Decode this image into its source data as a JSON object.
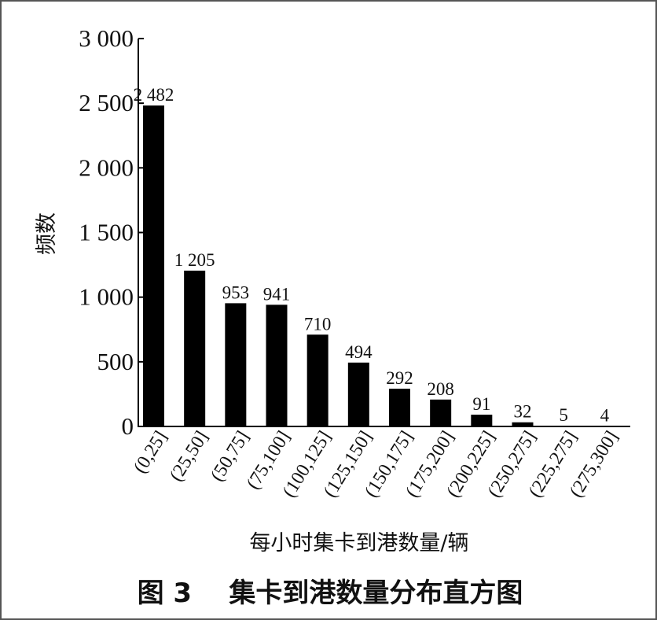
{
  "caption": "图 3    集卡到港数量分布直方图",
  "chart_data": {
    "type": "bar",
    "categories": [
      "(0,25]",
      "(25,50]",
      "(50,75]",
      "(75,100]",
      "(100,125]",
      "(125,150]",
      "(150,175]",
      "(175,200]",
      "(200,225]",
      "(250,275]",
      "(225,275]",
      "(275,300]"
    ],
    "values": [
      2482,
      1205,
      953,
      941,
      710,
      494,
      292,
      208,
      91,
      32,
      5,
      4
    ],
    "value_labels": [
      "2 482",
      "1 205",
      "953",
      "941",
      "710",
      "494",
      "292",
      "208",
      "91",
      "32",
      "5",
      "4"
    ],
    "xlabel": "每小时集卡到港数量/辆",
    "ylabel": "频数",
    "ylim": [
      0,
      3000
    ],
    "yticks": [
      0,
      500,
      1000,
      1500,
      2000,
      2500,
      3000
    ],
    "ytick_labels": [
      "0",
      "500",
      "1 000",
      "1 500",
      "2 000",
      "2 500",
      "3 000"
    ],
    "grid": false,
    "bar_color": "#000000"
  }
}
